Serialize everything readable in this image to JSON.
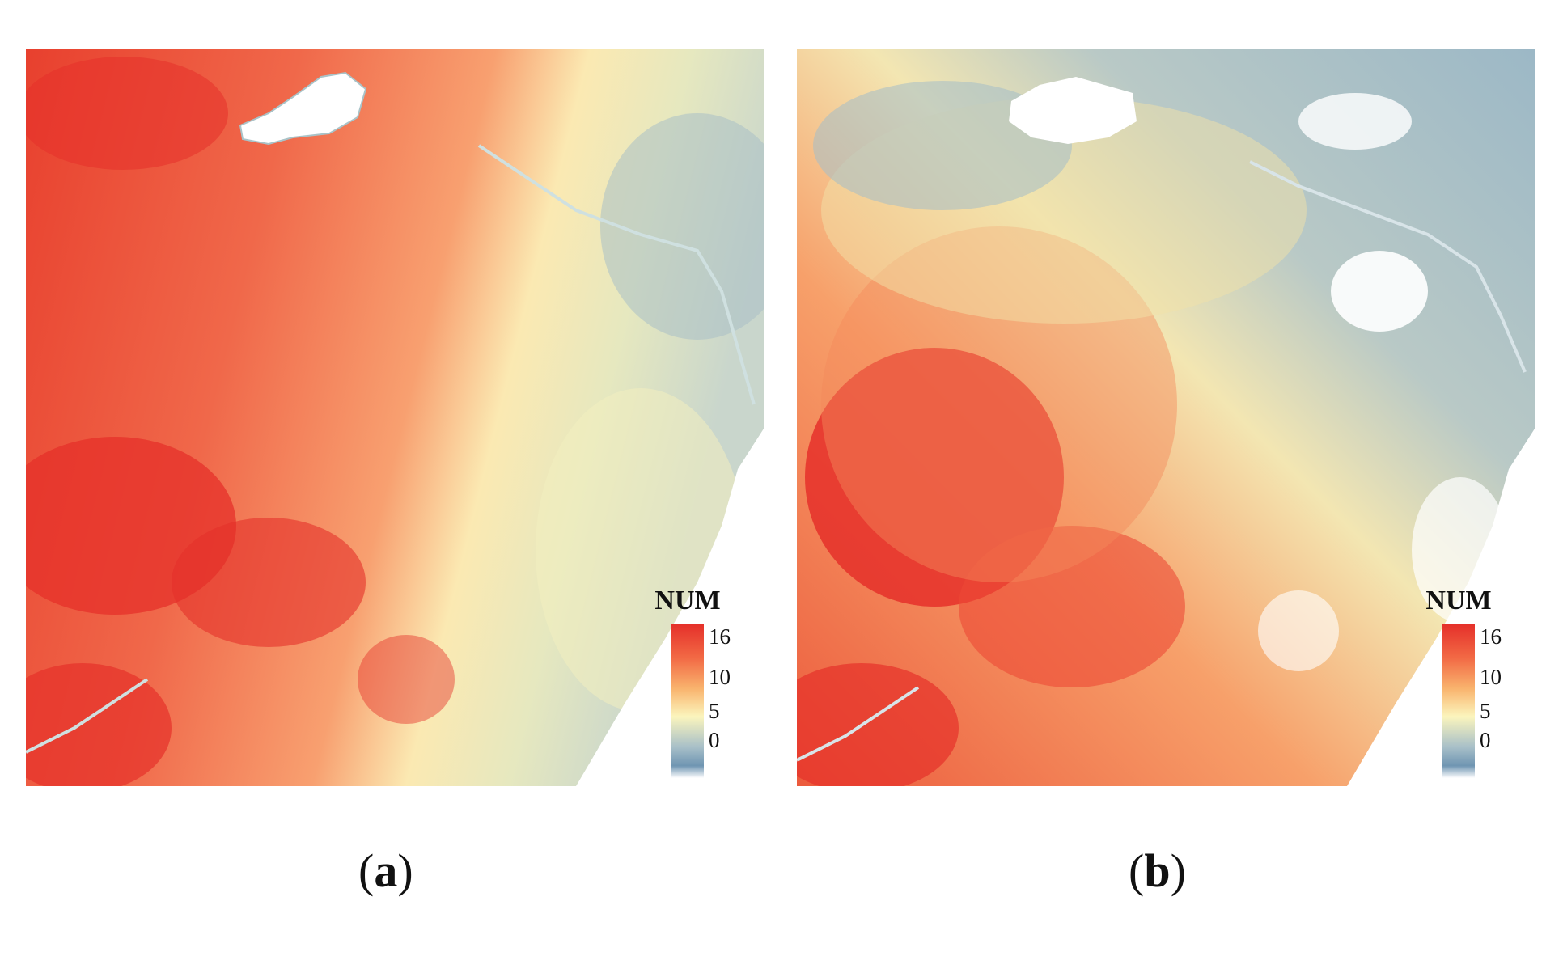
{
  "panels": [
    {
      "id": "a",
      "label": "a",
      "legend": {
        "title": "NUM",
        "ticks": [
          "16",
          "10",
          "5",
          "0"
        ]
      }
    },
    {
      "id": "b",
      "label": "b",
      "legend": {
        "title": "NUM",
        "ticks": [
          "16",
          "10",
          "5",
          "0"
        ]
      }
    }
  ],
  "colors": {
    "high": "#e5302a",
    "mid_high": "#f26a45",
    "mid": "#f9b46e",
    "low_mid": "#fbf5bd",
    "low": "#a7bfc8",
    "lowest": "#6f95b2",
    "zero": "#ffffff"
  }
}
